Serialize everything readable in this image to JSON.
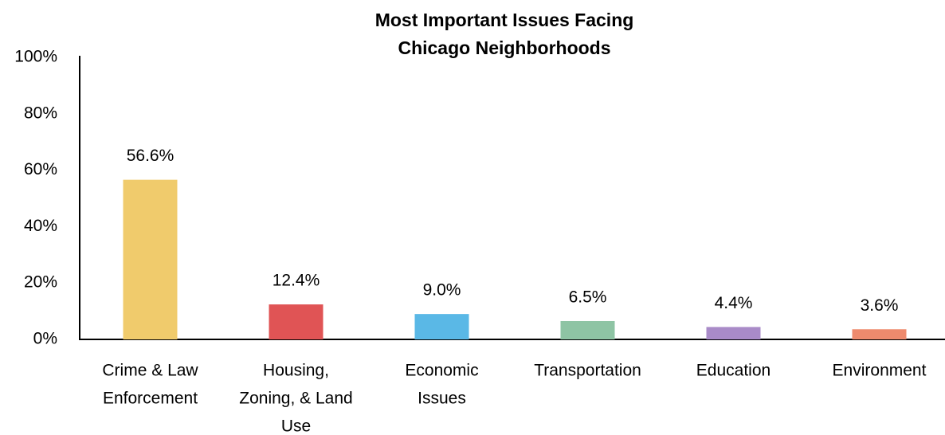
{
  "chart_data": {
    "type": "bar",
    "title": [
      "Most Important Issues Facing",
      "Chicago Neighborhoods"
    ],
    "categories": [
      [
        "Crime & Law",
        "Enforcement"
      ],
      [
        "Housing,",
        "Zoning, & Land",
        "Use"
      ],
      [
        "Economic",
        "Issues"
      ],
      [
        "Transportation"
      ],
      [
        "Education"
      ],
      [
        "Environment"
      ]
    ],
    "values": [
      56.6,
      12.4,
      9.0,
      6.5,
      4.4,
      3.6
    ],
    "value_labels": [
      "56.6%",
      "12.4%",
      "9.0%",
      "6.5%",
      "4.4%",
      "3.6%"
    ],
    "colors": [
      "#f0cb6c",
      "#e05455",
      "#5ab8e6",
      "#8ec4a4",
      "#a98bc8",
      "#ee8a6d"
    ],
    "ylim": [
      0,
      100
    ],
    "yticks": [
      {
        "value": 0,
        "label": "0%"
      },
      {
        "value": 20,
        "label": "20%"
      },
      {
        "value": 40,
        "label": "40%"
      },
      {
        "value": 60,
        "label": "60%"
      },
      {
        "value": 80,
        "label": "80%"
      },
      {
        "value": 100,
        "label": "100%"
      }
    ],
    "grid": false
  }
}
